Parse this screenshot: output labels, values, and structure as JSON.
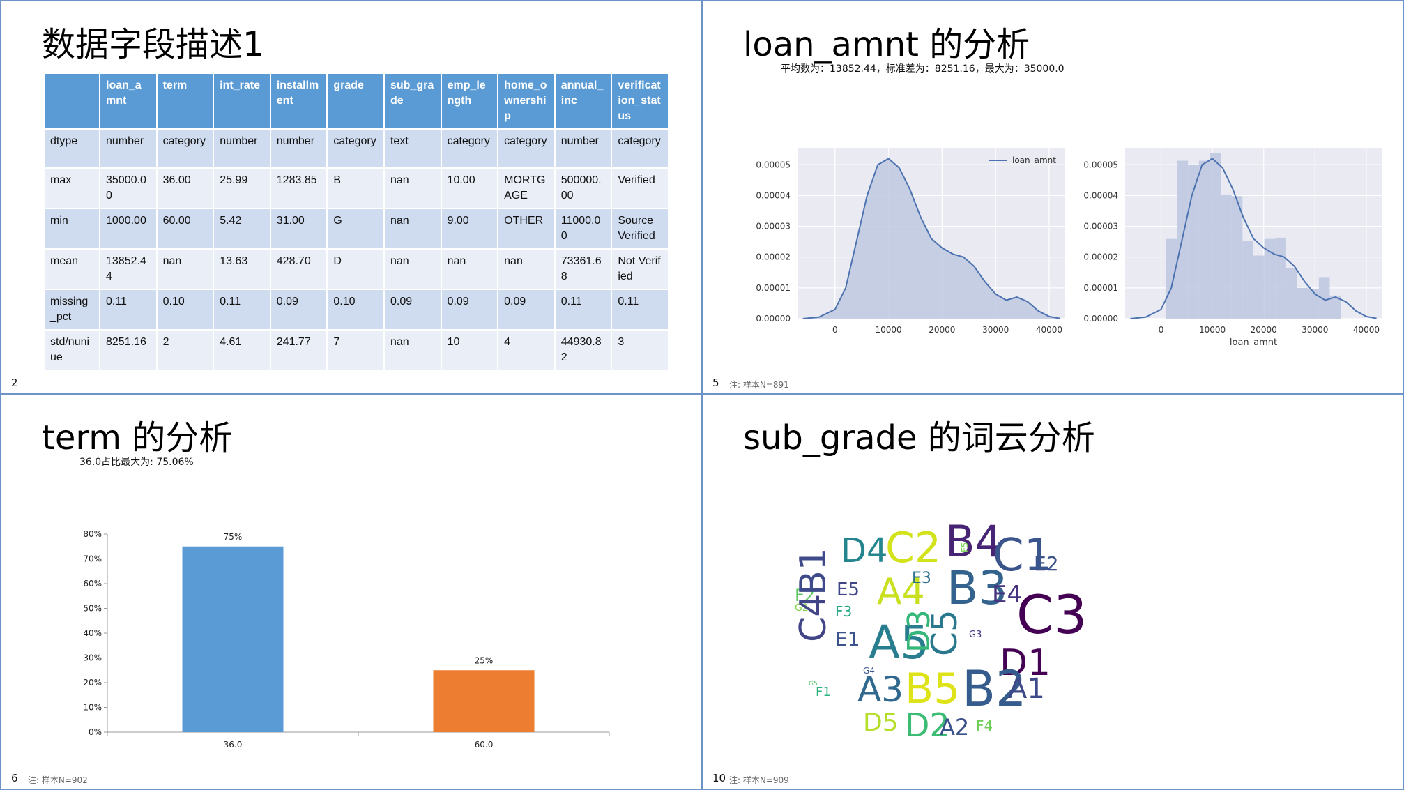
{
  "slide1": {
    "title": "数据字段描述1",
    "page": "2",
    "table": {
      "headers": [
        "",
        "loan_amnt",
        "term",
        "int_rate",
        "installment",
        "grade",
        "sub_grade",
        "emp_length",
        "home_ownership",
        "annual_inc",
        "verification_status"
      ],
      "rows": [
        [
          "dtype",
          "number",
          "category",
          "number",
          "number",
          "category",
          "text",
          "category",
          "category",
          "number",
          "category"
        ],
        [
          "max",
          "35000.00",
          "36.00",
          "25.99",
          "1283.85",
          "B",
          "nan",
          "10.00",
          "MORTGAGE",
          "500000.00",
          "Verified"
        ],
        [
          "min",
          "1000.00",
          "60.00",
          "5.42",
          "31.00",
          "G",
          "nan",
          "9.00",
          "OTHER",
          "11000.00",
          "Source Verified"
        ],
        [
          "mean",
          "13852.44",
          "nan",
          "13.63",
          "428.70",
          "D",
          "nan",
          "nan",
          "nan",
          "73361.68",
          "Not Verified"
        ],
        [
          "missing_pct",
          "0.11",
          "0.10",
          "0.11",
          "0.09",
          "0.10",
          "0.09",
          "0.09",
          "0.09",
          "0.11",
          "0.11"
        ],
        [
          "std/nuniue",
          "8251.16",
          "2",
          "4.61",
          "241.77",
          "7",
          "nan",
          "10",
          "4",
          "44930.82",
          "3"
        ]
      ]
    }
  },
  "slide2": {
    "title": "loan_amnt 的分析",
    "subtitle": "平均数为：13852.44，标准差为：8251.16，最大为：35000.0",
    "page": "5",
    "note": "注: 样本N=891",
    "colors": {
      "fill": "#c0c9e2",
      "line": "#4c72b0",
      "bg": "#eaeaf2"
    },
    "chart_data": [
      {
        "type": "area",
        "series_name": "loan_amnt",
        "x": [
          -6000,
          -3000,
          0,
          2000,
          4000,
          6000,
          8000,
          10000,
          12000,
          14000,
          16000,
          18000,
          20000,
          22000,
          24000,
          26000,
          28000,
          30000,
          32000,
          34000,
          36000,
          38000,
          40000,
          42000
        ],
        "y": [
          0.0,
          5e-07,
          3e-06,
          1e-05,
          2.5e-05,
          4e-05,
          5e-05,
          5.2e-05,
          4.9e-05,
          4.2e-05,
          3.3e-05,
          2.6e-05,
          2.3e-05,
          2.1e-05,
          2e-05,
          1.7e-05,
          1.2e-05,
          8e-06,
          6e-06,
          7e-06,
          5.5e-06,
          2.5e-06,
          7e-07,
          1e-07
        ],
        "xticks": [
          "0",
          "10000",
          "20000",
          "30000",
          "40000"
        ],
        "yticks": [
          "0.00000",
          "0.00001",
          "0.00002",
          "0.00003",
          "0.00004",
          "0.00005"
        ],
        "xlim": [
          -7000,
          43000
        ],
        "ylim": [
          0,
          5.55e-05
        ]
      },
      {
        "type": "bar",
        "xlabel": "loan_amnt",
        "bin_edges": [
          1000,
          3125,
          5250,
          7375,
          9500,
          11625,
          13750,
          15875,
          18000,
          20125,
          22250,
          24375,
          26500,
          28625,
          30750,
          32875,
          35000
        ],
        "bin_values": [
          2.59e-05,
          5.13e-05,
          5e-05,
          5.13e-05,
          5.39e-05,
          4.02e-05,
          3.98e-05,
          2.53e-05,
          2.05e-05,
          2.59e-05,
          2.63e-05,
          1.64e-05,
          1e-05,
          9.5e-06,
          1.35e-05,
          7.5e-06
        ],
        "kde_x": [
          -6000,
          -3000,
          0,
          2000,
          4000,
          6000,
          8000,
          10000,
          12000,
          14000,
          16000,
          18000,
          20000,
          22000,
          24000,
          26000,
          28000,
          30000,
          32000,
          34000,
          36000,
          38000,
          40000,
          42000
        ],
        "kde_y": [
          0.0,
          5e-07,
          3e-06,
          1e-05,
          2.5e-05,
          4e-05,
          5e-05,
          5.2e-05,
          4.9e-05,
          4.2e-05,
          3.3e-05,
          2.6e-05,
          2.3e-05,
          2.1e-05,
          2e-05,
          1.7e-05,
          1.2e-05,
          8e-06,
          6e-06,
          7e-06,
          5.5e-06,
          2.5e-06,
          7e-07,
          1e-07
        ],
        "xticks": [
          "0",
          "10000",
          "20000",
          "30000",
          "40000"
        ],
        "yticks": [
          "0.00000",
          "0.00001",
          "0.00002",
          "0.00003",
          "0.00004",
          "0.00005"
        ],
        "xlim": [
          -7000,
          43000
        ],
        "ylim": [
          0,
          5.55e-05
        ]
      }
    ]
  },
  "slide3": {
    "title": "term 的分析",
    "subtitle": "36.0占比最大为: 75.06%",
    "page": "6",
    "note": "注: 样本N=902",
    "chart_data": {
      "type": "bar",
      "categories": [
        "36.0",
        "60.0"
      ],
      "values": [
        75,
        25
      ],
      "data_labels": [
        "75%",
        "25%"
      ],
      "yticks": [
        "0%",
        "10%",
        "20%",
        "30%",
        "40%",
        "50%",
        "60%",
        "70%",
        "80%"
      ],
      "ylim": [
        0,
        80
      ],
      "colors": [
        "#5b9bd5",
        "#ed7d31"
      ]
    }
  },
  "slide4": {
    "title": "sub_grade 的词云分析",
    "page": "10",
    "note": "注: 样本N=909",
    "words": [
      {
        "text": "B4",
        "color": "#482475"
      },
      {
        "text": "C2",
        "color": "#d2e21b"
      },
      {
        "text": "D4",
        "color": "#25858e"
      },
      {
        "text": "C1",
        "color": "#3a548c"
      },
      {
        "text": "E2",
        "color": "#3b528b"
      },
      {
        "text": "F5",
        "color": "#7ad151"
      },
      {
        "text": "B3",
        "color": "#33638d"
      },
      {
        "text": "A4",
        "color": "#c8e020"
      },
      {
        "text": "E5",
        "color": "#404688"
      },
      {
        "text": "E3",
        "color": "#2d708e"
      },
      {
        "text": "E4",
        "color": "#46327e"
      },
      {
        "text": "F2",
        "color": "#5ec962"
      },
      {
        "text": "G2",
        "color": "#86d549"
      },
      {
        "text": "F3",
        "color": "#22a884"
      },
      {
        "text": "B1",
        "color": "#3e4a89"
      },
      {
        "text": "C4",
        "color": "#414487"
      },
      {
        "text": "A5",
        "color": "#287d8e"
      },
      {
        "text": "D3",
        "color": "#35b779"
      },
      {
        "text": "C5",
        "color": "#2a788e"
      },
      {
        "text": "C3",
        "color": "#440154"
      },
      {
        "text": "E1",
        "color": "#3b528b"
      },
      {
        "text": "G3",
        "color": "#453781"
      },
      {
        "text": "D1",
        "color": "#440154"
      },
      {
        "text": "G4",
        "color": "#39568c"
      },
      {
        "text": "A3",
        "color": "#31688e"
      },
      {
        "text": "B5",
        "color": "#dde318"
      },
      {
        "text": "B2",
        "color": "#365c8d"
      },
      {
        "text": "A1",
        "color": "#3e4989"
      },
      {
        "text": "G5",
        "color": "#54c568"
      },
      {
        "text": "F1",
        "color": "#2db27d"
      },
      {
        "text": "D5",
        "color": "#b5de2b"
      },
      {
        "text": "D2",
        "color": "#3dbc74"
      },
      {
        "text": "A2",
        "color": "#3b528b"
      },
      {
        "text": "F4",
        "color": "#6ece58"
      }
    ]
  }
}
